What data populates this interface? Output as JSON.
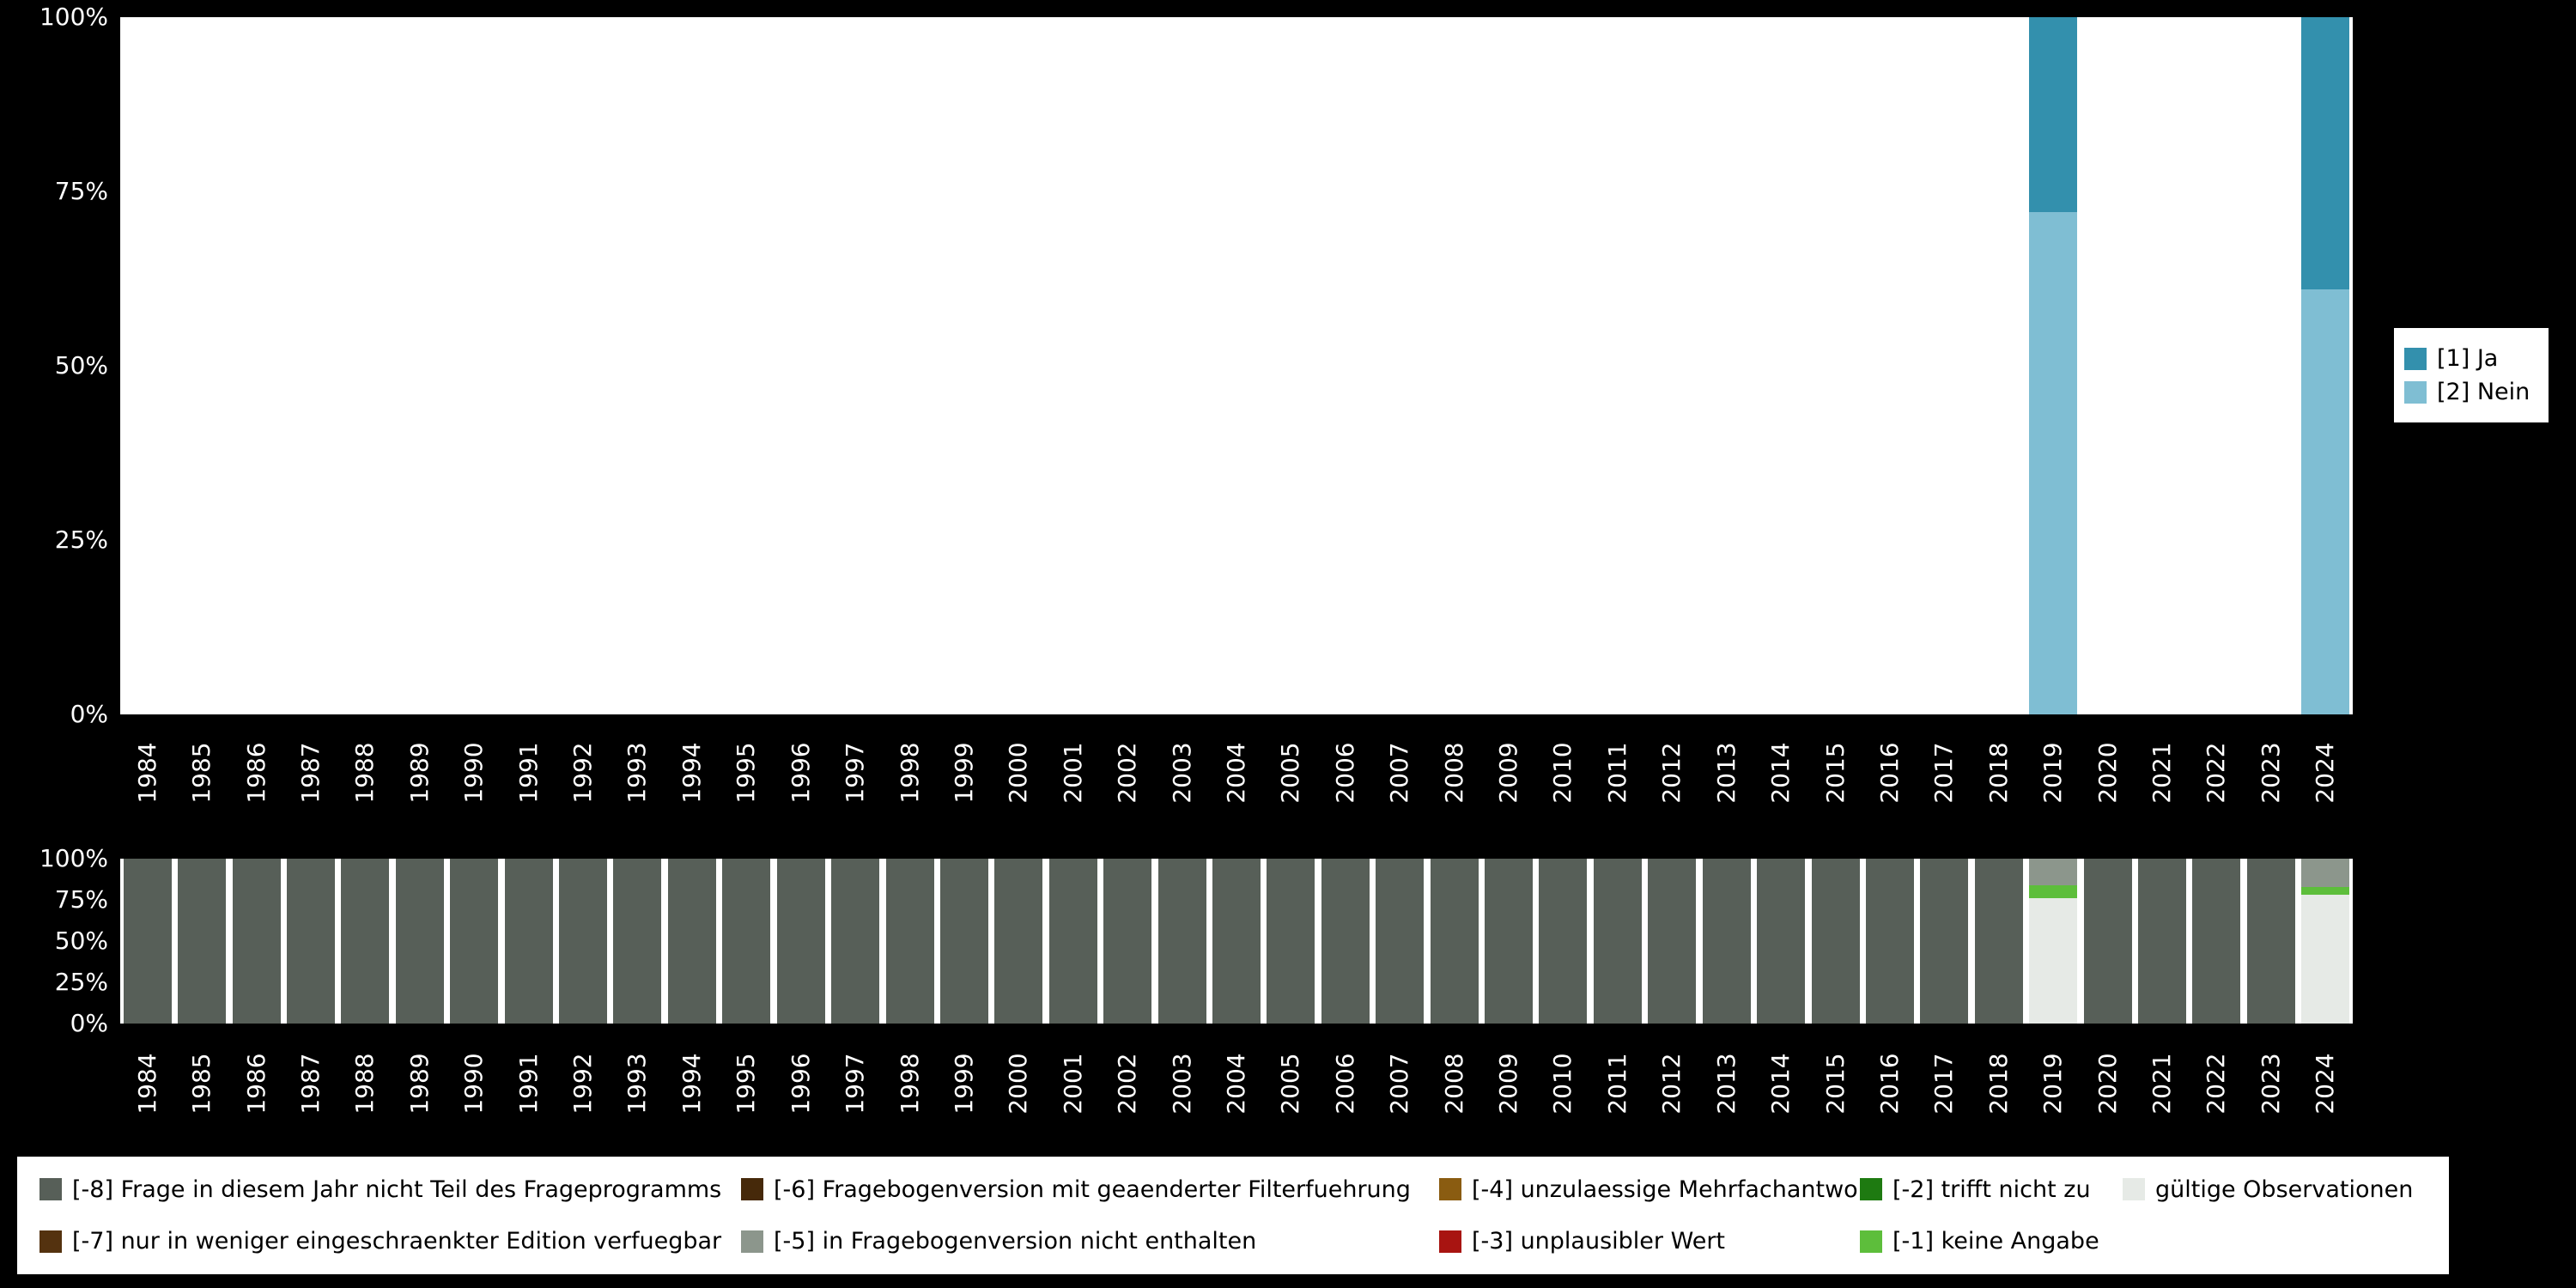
{
  "colors": {
    "background": "#000000",
    "plot_background": "#ffffff",
    "axis_text": "#ffffff",
    "legend_background": "#ffffff",
    "legend_text": "#000000"
  },
  "chart_data": [
    {
      "id": "answers",
      "type": "bar",
      "stacked": true,
      "title": "",
      "xlabel": "",
      "ylabel": "",
      "ylim": [
        0,
        100
      ],
      "grid": false,
      "xtick_rotation": 90,
      "ytick_percents": [
        0,
        25,
        50,
        75,
        100
      ],
      "ytick_labels": [
        "0%",
        "25%",
        "50%",
        "75%",
        "100%"
      ],
      "x": [
        1984,
        1985,
        1986,
        1987,
        1988,
        1989,
        1990,
        1991,
        1992,
        1993,
        1994,
        1995,
        1996,
        1997,
        1998,
        1999,
        2000,
        2001,
        2002,
        2003,
        2004,
        2005,
        2006,
        2007,
        2008,
        2009,
        2010,
        2011,
        2012,
        2013,
        2014,
        2015,
        2016,
        2017,
        2018,
        2019,
        2020,
        2021,
        2022,
        2023,
        2024
      ],
      "legend_position": "right",
      "series": [
        {
          "name": "[2] Nein",
          "color": "#7fbed3",
          "values": [
            0,
            0,
            0,
            0,
            0,
            0,
            0,
            0,
            0,
            0,
            0,
            0,
            0,
            0,
            0,
            0,
            0,
            0,
            0,
            0,
            0,
            0,
            0,
            0,
            0,
            0,
            0,
            0,
            0,
            0,
            0,
            0,
            0,
            0,
            0,
            72,
            0,
            0,
            0,
            0,
            61
          ]
        },
        {
          "name": "[1] Ja",
          "color": "#3390ad",
          "values": [
            0,
            0,
            0,
            0,
            0,
            0,
            0,
            0,
            0,
            0,
            0,
            0,
            0,
            0,
            0,
            0,
            0,
            0,
            0,
            0,
            0,
            0,
            0,
            0,
            0,
            0,
            0,
            0,
            0,
            0,
            0,
            0,
            0,
            0,
            0,
            28,
            0,
            0,
            0,
            0,
            39
          ]
        }
      ]
    },
    {
      "id": "missings",
      "type": "bar",
      "stacked": true,
      "title": "",
      "xlabel": "",
      "ylabel": "",
      "ylim": [
        0,
        100
      ],
      "grid": false,
      "xtick_rotation": 90,
      "ytick_percents": [
        0,
        25,
        50,
        75,
        100
      ],
      "ytick_labels": [
        "0%",
        "25%",
        "50%",
        "75%",
        "100%"
      ],
      "x": [
        1984,
        1985,
        1986,
        1987,
        1988,
        1989,
        1990,
        1991,
        1992,
        1993,
        1994,
        1995,
        1996,
        1997,
        1998,
        1999,
        2000,
        2001,
        2002,
        2003,
        2004,
        2005,
        2006,
        2007,
        2008,
        2009,
        2010,
        2011,
        2012,
        2013,
        2014,
        2015,
        2016,
        2017,
        2018,
        2019,
        2020,
        2021,
        2022,
        2023,
        2024
      ],
      "legend_position": "bottom",
      "series": [
        {
          "name": "gültige Observationen",
          "color": "#e6eae6",
          "values": [
            0,
            0,
            0,
            0,
            0,
            0,
            0,
            0,
            0,
            0,
            0,
            0,
            0,
            0,
            0,
            0,
            0,
            0,
            0,
            0,
            0,
            0,
            0,
            0,
            0,
            0,
            0,
            0,
            0,
            0,
            0,
            0,
            0,
            0,
            0,
            76,
            0,
            0,
            0,
            0,
            78
          ]
        },
        {
          "name": "[-1] keine Angabe",
          "color": "#5dbe3b",
          "values": [
            0,
            0,
            0,
            0,
            0,
            0,
            0,
            0,
            0,
            0,
            0,
            0,
            0,
            0,
            0,
            0,
            0,
            0,
            0,
            0,
            0,
            0,
            0,
            0,
            0,
            0,
            0,
            0,
            0,
            0,
            0,
            0,
            0,
            0,
            0,
            8,
            0,
            0,
            0,
            0,
            5
          ]
        },
        {
          "name": "[-5] in Fragebogenversion nicht enthalten",
          "color": "#8c968c",
          "values": [
            0,
            0,
            0,
            0,
            0,
            0,
            0,
            0,
            0,
            0,
            0,
            0,
            0,
            0,
            0,
            0,
            0,
            0,
            0,
            0,
            0,
            0,
            0,
            0,
            0,
            0,
            0,
            0,
            0,
            0,
            0,
            0,
            0,
            0,
            0,
            16,
            0,
            0,
            0,
            0,
            17
          ]
        },
        {
          "name": "[-8] Frage in diesem Jahr nicht Teil des Frageprogramms",
          "color": "#575f58",
          "values": [
            100,
            100,
            100,
            100,
            100,
            100,
            100,
            100,
            100,
            100,
            100,
            100,
            100,
            100,
            100,
            100,
            100,
            100,
            100,
            100,
            100,
            100,
            100,
            100,
            100,
            100,
            100,
            100,
            100,
            100,
            100,
            100,
            100,
            100,
            100,
            0,
            100,
            100,
            100,
            100,
            0
          ]
        }
      ]
    }
  ],
  "main_legend": {
    "items": [
      {
        "label": "[1] Ja",
        "color": "#3390ad"
      },
      {
        "label": "[2] Nein",
        "color": "#7fbed3"
      }
    ]
  },
  "missings_legend": {
    "items": [
      {
        "label": "[-8] Frage in diesem Jahr nicht Teil des Frageprogramms",
        "color": "#575f58"
      },
      {
        "label": "[-7] nur in weniger eingeschraenkter Edition verfuegbar",
        "color": "#54320f"
      },
      {
        "label": "[-6] Fragebogenversion mit geaenderter Filterfuehrung",
        "color": "#46290a"
      },
      {
        "label": "[-5] in Fragebogenversion nicht enthalten",
        "color": "#8c968c"
      },
      {
        "label": "[-4] unzulaessige Mehrfachantwort",
        "color": "#8a5c11"
      },
      {
        "label": "[-3] unplausibler Wert",
        "color": "#a81411"
      },
      {
        "label": "[-2] trifft nicht zu",
        "color": "#1e7a11"
      },
      {
        "label": "[-1] keine Angabe",
        "color": "#5dbe3b"
      },
      {
        "label": "gültige Observationen",
        "color": "#e6eae6"
      }
    ]
  }
}
